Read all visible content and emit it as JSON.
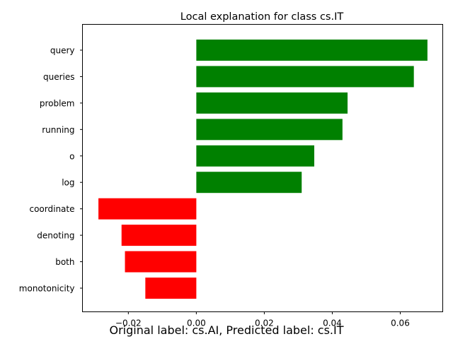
{
  "chart_data": {
    "type": "bar",
    "orientation": "horizontal",
    "title": "Local explanation for class cs.IT",
    "categories": [
      "query",
      "queries",
      "problem",
      "running",
      "o",
      "log",
      "coordinate",
      "denoting",
      "both",
      "monotonicity"
    ],
    "values": [
      0.068,
      0.064,
      0.0445,
      0.043,
      0.0347,
      0.031,
      -0.0288,
      -0.022,
      -0.021,
      -0.015
    ],
    "xlim": [
      -0.0335,
      0.0725
    ],
    "xticks": [
      -0.02,
      0.0,
      0.02,
      0.04,
      0.06
    ],
    "xtick_labels": [
      "−0.02",
      "0.00",
      "0.02",
      "0.04",
      "0.06"
    ],
    "xlabel": "",
    "ylabel": "",
    "grid": false,
    "colors": {
      "positive": "#008000",
      "negative": "#ff0000"
    }
  },
  "caption": "Original label: cs.AI, Predicted label: cs.IT"
}
